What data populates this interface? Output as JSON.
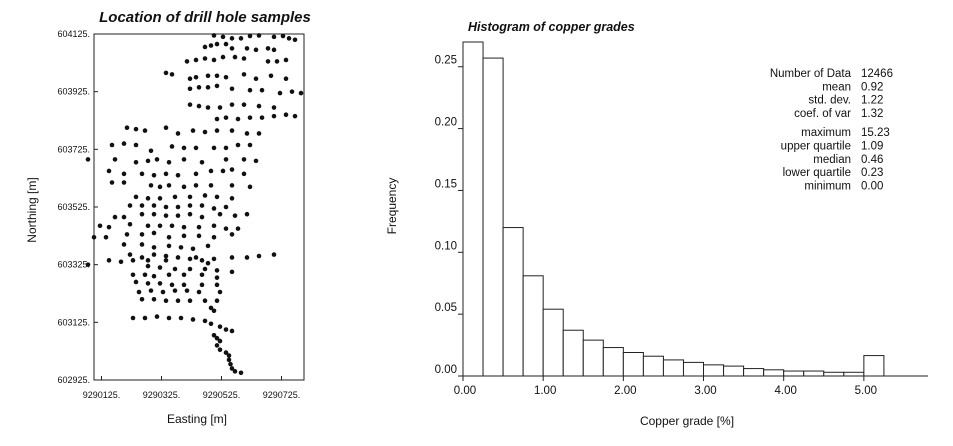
{
  "chart_data": [
    {
      "type": "scatter",
      "title": "Location of drill hole samples",
      "xlabel": "Easting [m]",
      "ylabel": "Northing [m]",
      "xlim": [
        9290100,
        9290800
      ],
      "ylim": [
        602925,
        604125
      ],
      "xticks": [
        9290125,
        9290325,
        9290525,
        9290725
      ],
      "xtick_labels": [
        "9290125.",
        "9290325.",
        "9290525.",
        "9290725."
      ],
      "yticks": [
        602925,
        603125,
        603325,
        603525,
        603725,
        603925,
        604125
      ],
      "ytick_labels": [
        "602925.",
        "603125.",
        "603325.",
        "603525.",
        "603725.",
        "603925.",
        "604125."
      ],
      "grid": false,
      "points": [
        [
          9290500,
          604120
        ],
        [
          9290530,
          604115
        ],
        [
          9290560,
          604110
        ],
        [
          9290590,
          604110
        ],
        [
          9290620,
          604118
        ],
        [
          9290650,
          604120
        ],
        [
          9290700,
          604115
        ],
        [
          9290730,
          604118
        ],
        [
          9290750,
          604110
        ],
        [
          9290770,
          604105
        ],
        [
          9290470,
          604080
        ],
        [
          9290490,
          604085
        ],
        [
          9290510,
          604090
        ],
        [
          9290540,
          604090
        ],
        [
          9290560,
          604075
        ],
        [
          9290610,
          604075
        ],
        [
          9290640,
          604070
        ],
        [
          9290680,
          604075
        ],
        [
          9290700,
          604070
        ],
        [
          9290410,
          604030
        ],
        [
          9290440,
          604035
        ],
        [
          9290470,
          604040
        ],
        [
          9290500,
          604035
        ],
        [
          9290530,
          604045
        ],
        [
          9290570,
          604045
        ],
        [
          9290600,
          604040
        ],
        [
          9290680,
          604030
        ],
        [
          9290710,
          604030
        ],
        [
          9290740,
          604035
        ],
        [
          9290340,
          603990
        ],
        [
          9290360,
          603985
        ],
        [
          9290420,
          603970
        ],
        [
          9290440,
          603975
        ],
        [
          9290480,
          603980
        ],
        [
          9290510,
          603980
        ],
        [
          9290540,
          603975
        ],
        [
          9290600,
          603985
        ],
        [
          9290640,
          603970
        ],
        [
          9290690,
          603980
        ],
        [
          9290740,
          603970
        ],
        [
          9290420,
          603935
        ],
        [
          9290450,
          603940
        ],
        [
          9290480,
          603940
        ],
        [
          9290510,
          603945
        ],
        [
          9290560,
          603935
        ],
        [
          9290620,
          603930
        ],
        [
          9290660,
          603930
        ],
        [
          9290720,
          603920
        ],
        [
          9290760,
          603925
        ],
        [
          9290790,
          603920
        ],
        [
          9290420,
          603880
        ],
        [
          9290450,
          603875
        ],
        [
          9290480,
          603870
        ],
        [
          9290520,
          603870
        ],
        [
          9290560,
          603880
        ],
        [
          9290600,
          603880
        ],
        [
          9290650,
          603875
        ],
        [
          9290700,
          603870
        ],
        [
          9290510,
          603830
        ],
        [
          9290540,
          603835
        ],
        [
          9290580,
          603830
        ],
        [
          9290620,
          603835
        ],
        [
          9290660,
          603835
        ],
        [
          9290700,
          603840
        ],
        [
          9290740,
          603845
        ],
        [
          9290770,
          603840
        ],
        [
          9290210,
          603800
        ],
        [
          9290240,
          603795
        ],
        [
          9290270,
          603790
        ],
        [
          9290340,
          603800
        ],
        [
          9290380,
          603780
        ],
        [
          9290430,
          603790
        ],
        [
          9290470,
          603785
        ],
        [
          9290510,
          603790
        ],
        [
          9290560,
          603790
        ],
        [
          9290610,
          603780
        ],
        [
          9290650,
          603780
        ],
        [
          9290160,
          603740
        ],
        [
          9290200,
          603745
        ],
        [
          9290240,
          603740
        ],
        [
          9290290,
          603720
        ],
        [
          9290360,
          603735
        ],
        [
          9290400,
          603730
        ],
        [
          9290440,
          603730
        ],
        [
          9290500,
          603730
        ],
        [
          9290540,
          603730
        ],
        [
          9290580,
          603740
        ],
        [
          9290620,
          603740
        ],
        [
          9290080,
          603690
        ],
        [
          9290170,
          603690
        ],
        [
          9290240,
          603680
        ],
        [
          9290280,
          603685
        ],
        [
          9290310,
          603690
        ],
        [
          9290350,
          603680
        ],
        [
          9290400,
          603690
        ],
        [
          9290460,
          603680
        ],
        [
          9290540,
          603690
        ],
        [
          9290600,
          603690
        ],
        [
          9290640,
          603685
        ],
        [
          9290150,
          603650
        ],
        [
          9290200,
          603640
        ],
        [
          9290260,
          603640
        ],
        [
          9290300,
          603635
        ],
        [
          9290340,
          603640
        ],
        [
          9290380,
          603635
        ],
        [
          9290440,
          603640
        ],
        [
          9290490,
          603650
        ],
        [
          9290530,
          603650
        ],
        [
          9290560,
          603655
        ],
        [
          9290600,
          603640
        ],
        [
          9290160,
          603610
        ],
        [
          9290200,
          603610
        ],
        [
          9290290,
          603600
        ],
        [
          9290320,
          603595
        ],
        [
          9290350,
          603600
        ],
        [
          9290400,
          603595
        ],
        [
          9290440,
          603600
        ],
        [
          9290490,
          603600
        ],
        [
          9290560,
          603600
        ],
        [
          9290620,
          603595
        ],
        [
          9290240,
          603560
        ],
        [
          9290280,
          603555
        ],
        [
          9290320,
          603555
        ],
        [
          9290370,
          603560
        ],
        [
          9290420,
          603560
        ],
        [
          9290470,
          603565
        ],
        [
          9290510,
          603560
        ],
        [
          9290560,
          603555
        ],
        [
          9290220,
          603530
        ],
        [
          9290260,
          603530
        ],
        [
          9290300,
          603530
        ],
        [
          9290340,
          603525
        ],
        [
          9290380,
          603525
        ],
        [
          9290420,
          603530
        ],
        [
          9290460,
          603530
        ],
        [
          9290500,
          603520
        ],
        [
          9290540,
          603525
        ],
        [
          9290170,
          603490
        ],
        [
          9290200,
          603490
        ],
        [
          9290260,
          603500
        ],
        [
          9290300,
          603500
        ],
        [
          9290340,
          603495
        ],
        [
          9290380,
          603495
        ],
        [
          9290420,
          603500
        ],
        [
          9290460,
          603490
        ],
        [
          9290520,
          603500
        ],
        [
          9290570,
          603495
        ],
        [
          9290610,
          603500
        ],
        [
          9290120,
          603460
        ],
        [
          9290150,
          603455
        ],
        [
          9290220,
          603465
        ],
        [
          9290280,
          603460
        ],
        [
          9290320,
          603460
        ],
        [
          9290360,
          603460
        ],
        [
          9290400,
          603455
        ],
        [
          9290450,
          603455
        ],
        [
          9290500,
          603460
        ],
        [
          9290540,
          603450
        ],
        [
          9290580,
          603450
        ],
        [
          9290100,
          603420
        ],
        [
          9290140,
          603420
        ],
        [
          9290210,
          603430
        ],
        [
          9290260,
          603430
        ],
        [
          9290300,
          603435
        ],
        [
          9290350,
          603420
        ],
        [
          9290400,
          603425
        ],
        [
          9290450,
          603425
        ],
        [
          9290500,
          603420
        ],
        [
          9290560,
          603430
        ],
        [
          9290200,
          603395
        ],
        [
          9290260,
          603395
        ],
        [
          9290300,
          603385
        ],
        [
          9290350,
          603390
        ],
        [
          9290390,
          603385
        ],
        [
          9290430,
          603380
        ],
        [
          9290480,
          603390
        ],
        [
          9290220,
          603360
        ],
        [
          9290260,
          603350
        ],
        [
          9290300,
          603360
        ],
        [
          9290340,
          603355
        ],
        [
          9290380,
          603350
        ],
        [
          9290440,
          603350
        ],
        [
          9290500,
          603345
        ],
        [
          9290560,
          603350
        ],
        [
          9290610,
          603350
        ],
        [
          9290650,
          603355
        ],
        [
          9290700,
          603360
        ],
        [
          9290150,
          603340
        ],
        [
          9290190,
          603335
        ],
        [
          9290230,
          603340
        ],
        [
          9290280,
          603340
        ],
        [
          9290340,
          603340
        ],
        [
          9290420,
          603345
        ],
        [
          9290460,
          603340
        ],
        [
          9290480,
          603330
        ],
        [
          9290080,
          603325
        ],
        [
          9290280,
          603320
        ],
        [
          9290320,
          603315
        ],
        [
          9290370,
          603310
        ],
        [
          9290420,
          603310
        ],
        [
          9290470,
          603310
        ],
        [
          9290510,
          603305
        ],
        [
          9290560,
          603300
        ],
        [
          9290230,
          603290
        ],
        [
          9290270,
          603290
        ],
        [
          9290300,
          603285
        ],
        [
          9290350,
          603290
        ],
        [
          9290400,
          603290
        ],
        [
          9290460,
          603290
        ],
        [
          9290510,
          603280
        ],
        [
          9290240,
          603265
        ],
        [
          9290280,
          603260
        ],
        [
          9290320,
          603260
        ],
        [
          9290360,
          603255
        ],
        [
          9290400,
          603255
        ],
        [
          9290460,
          603255
        ],
        [
          9290510,
          603255
        ],
        [
          9290250,
          603230
        ],
        [
          9290290,
          603235
        ],
        [
          9290330,
          603230
        ],
        [
          9290370,
          603235
        ],
        [
          9290410,
          603235
        ],
        [
          9290450,
          603230
        ],
        [
          9290520,
          603230
        ],
        [
          9290260,
          603205
        ],
        [
          9290300,
          603205
        ],
        [
          9290340,
          603200
        ],
        [
          9290380,
          603200
        ],
        [
          9290420,
          603200
        ],
        [
          9290470,
          603200
        ],
        [
          9290510,
          603200
        ],
        [
          9290490,
          603175
        ],
        [
          9290500,
          603165
        ],
        [
          9290230,
          603140
        ],
        [
          9290270,
          603140
        ],
        [
          9290310,
          603145
        ],
        [
          9290350,
          603140
        ],
        [
          9290390,
          603140
        ],
        [
          9290430,
          603135
        ],
        [
          9290470,
          603130
        ],
        [
          9290490,
          603120
        ],
        [
          9290520,
          603110
        ],
        [
          9290540,
          603100
        ],
        [
          9290560,
          603095
        ],
        [
          9290500,
          603080
        ],
        [
          9290510,
          603070
        ],
        [
          9290520,
          603060
        ],
        [
          9290510,
          603045
        ],
        [
          9290520,
          603030
        ],
        [
          9290540,
          603020
        ],
        [
          9290550,
          603010
        ],
        [
          9290550,
          602995
        ],
        [
          9290555,
          602980
        ],
        [
          9290560,
          602965
        ],
        [
          9290570,
          602955
        ],
        [
          9290590,
          602950
        ]
      ]
    },
    {
      "type": "bar",
      "title": "Histogram of copper grades",
      "xlabel": "Copper grade [%]",
      "ylabel": "Frequency",
      "xlim": [
        0.0,
        5.8
      ],
      "ylim": [
        0.0,
        0.27
      ],
      "xticks": [
        0.0,
        1.0,
        2.0,
        3.0,
        4.0,
        5.0
      ],
      "xtick_labels": [
        "0.00",
        "1.00",
        "2.00",
        "3.00",
        "4.00",
        "5.00"
      ],
      "yticks": [
        0.0,
        0.05,
        0.1,
        0.15,
        0.2,
        0.25
      ],
      "ytick_labels": [
        "0.00",
        "0.05",
        "0.10",
        "0.15",
        "0.20",
        "0.25"
      ],
      "bin_width": 0.25,
      "bins_start": 0.0,
      "values": [
        0.27,
        0.257,
        0.12,
        0.081,
        0.054,
        0.037,
        0.029,
        0.023,
        0.019,
        0.016,
        0.013,
        0.011,
        0.009,
        0.008,
        0.006,
        0.005,
        0.004,
        0.004,
        0.003,
        0.003,
        0.0165
      ],
      "grid": false,
      "stats": [
        {
          "label": "Number of Data",
          "value": "12466",
          "group": 1
        },
        {
          "label": "mean",
          "value": "0.92",
          "group": 1
        },
        {
          "label": "std. dev.",
          "value": "1.22",
          "group": 1
        },
        {
          "label": "coef. of var",
          "value": "1.32",
          "group": 1
        },
        {
          "label": "maximum",
          "value": "15.23",
          "group": 2
        },
        {
          "label": "upper quartile",
          "value": "1.09",
          "group": 2
        },
        {
          "label": "median",
          "value": "0.46",
          "group": 2
        },
        {
          "label": "lower quartile",
          "value": "0.23",
          "group": 2
        },
        {
          "label": "minimum",
          "value": "0.00",
          "group": 2
        }
      ]
    }
  ]
}
